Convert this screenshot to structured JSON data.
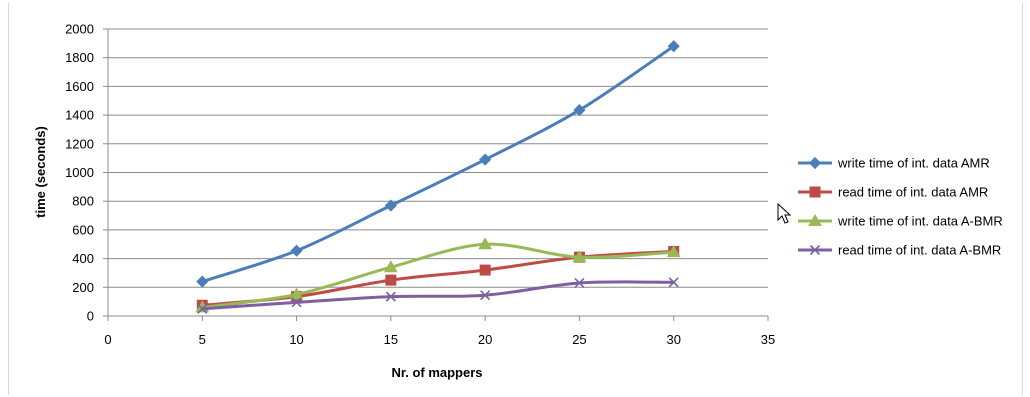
{
  "chart_data": {
    "type": "line",
    "title": "",
    "xlabel": "Nr. of mappers",
    "ylabel": "time (seconds)",
    "xlim": [
      0,
      35
    ],
    "ylim": [
      0,
      2000
    ],
    "x_ticks": [
      "0",
      "5",
      "10",
      "15",
      "20",
      "25",
      "30",
      "35"
    ],
    "y_ticks": [
      "0",
      "200",
      "400",
      "600",
      "800",
      "1000",
      "1200",
      "1400",
      "1600",
      "1800",
      "2000"
    ],
    "grid": "horizontal",
    "legend_position": "right",
    "x": [
      5,
      10,
      15,
      20,
      25,
      30
    ],
    "series": [
      {
        "name": "write time of int. data AMR",
        "values": [
          240,
          455,
          770,
          1090,
          1435,
          1880
        ],
        "color": "#4a7ebb",
        "marker": "diamond"
      },
      {
        "name": "read time of int. data AMR",
        "values": [
          75,
          135,
          250,
          320,
          410,
          450
        ],
        "color": "#be4b48",
        "marker": "square"
      },
      {
        "name": "write time of int. data A-BMR",
        "values": [
          60,
          150,
          340,
          500,
          410,
          445
        ],
        "color": "#98b954",
        "marker": "triangle"
      },
      {
        "name": "read time of int. data A-BMR",
        "values": [
          50,
          95,
          135,
          145,
          230,
          235
        ],
        "color": "#7d60a0",
        "marker": "x"
      }
    ]
  }
}
